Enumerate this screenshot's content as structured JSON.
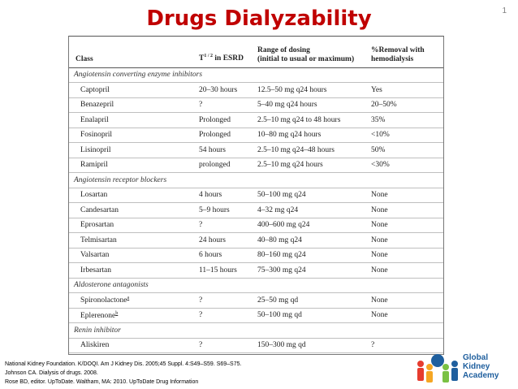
{
  "slide": {
    "title": "Drugs Dialyzability",
    "number": "1"
  },
  "table": {
    "headers": {
      "class": "Class",
      "half_life_prefix": "T",
      "half_life_sup": "1 / 2",
      "half_life_suffix": " in ESRD",
      "range_line1": "Range of dosing",
      "range_line2": "(initial to usual or maximum)",
      "removal_line1": "%Removal with",
      "removal_line2": "hemodialysis"
    },
    "sections": [
      {
        "name": "Angiotensin converting enzyme inhibitors",
        "rows": [
          {
            "drug": "Captopril",
            "half_life": "20–30 hours",
            "range": "12.5–50 mg q24 hours",
            "removal": "Yes"
          },
          {
            "drug": "Benazepril",
            "half_life": "?",
            "range": "5–40 mg q24 hours",
            "removal": "20–50%"
          },
          {
            "drug": "Enalapril",
            "half_life": "Prolonged",
            "range": "2.5–10 mg q24 to 48 hours",
            "removal": "35%"
          },
          {
            "drug": "Fosinopril",
            "half_life": "Prolonged",
            "range": "10–80 mg q24 hours",
            "removal": "<10%"
          },
          {
            "drug": "Lisinopril",
            "half_life": "54 hours",
            "range": "2.5–10 mg q24–48 hours",
            "removal": "50%"
          },
          {
            "drug": "Ramipril",
            "half_life": "prolonged",
            "range": "2.5–10 mg q24 hours",
            "removal": "<30%"
          }
        ]
      },
      {
        "name": "Angiotensin receptor blockers",
        "rows": [
          {
            "drug": "Losartan",
            "half_life": "4 hours",
            "range": "50–100 mg q24",
            "removal": "None"
          },
          {
            "drug": "Candesartan",
            "half_life": "5–9 hours",
            "range": "4–32 mg q24",
            "removal": "None"
          },
          {
            "drug": "Eprosartan",
            "half_life": "?",
            "range": "400–600 mg q24",
            "removal": "None"
          },
          {
            "drug": "Telmisartan",
            "half_life": "24 hours",
            "range": "40–80 mg q24",
            "removal": "None"
          },
          {
            "drug": "Valsartan",
            "half_life": "6 hours",
            "range": "80–160 mg q24",
            "removal": "None"
          },
          {
            "drug": "Irbesartan",
            "half_life": "11–15 hours",
            "range": "75–300 mg q24",
            "removal": "None"
          }
        ]
      },
      {
        "name": "Aldosterone antagonists",
        "rows": [
          {
            "drug": "Spironolactone",
            "drug_sup": "a",
            "half_life": "?",
            "range": "25–50 mg qd",
            "removal": "None"
          },
          {
            "drug": "Eplerenone",
            "drug_sup": "b",
            "half_life": "?",
            "range": "50–100 mg qd",
            "removal": "None"
          }
        ]
      },
      {
        "name": "Renin inhibitor",
        "rows": [
          {
            "drug": "Aliskiren",
            "half_life": "?",
            "range": "150–300 mg qd",
            "removal": "?"
          }
        ]
      }
    ]
  },
  "references": [
    "National Kidney Foundation. K/DOQI. Am J Kidney Dis. 2005;45 Suppl. 4:S49–S59. S69–S75.",
    "Johnson CA. Dialysis of drugs. 2008.",
    "Rose BD, editor. UpToDate. Waltham, MA: 2010. UpToDate Drug Information"
  ],
  "logo": {
    "line1": "Global",
    "line2": "Kidney",
    "line3": "Academy",
    "icon": "people-globe-logo",
    "colors": [
      "#e63c2f",
      "#f5a623",
      "#7ac143",
      "#1f5f9e"
    ]
  }
}
